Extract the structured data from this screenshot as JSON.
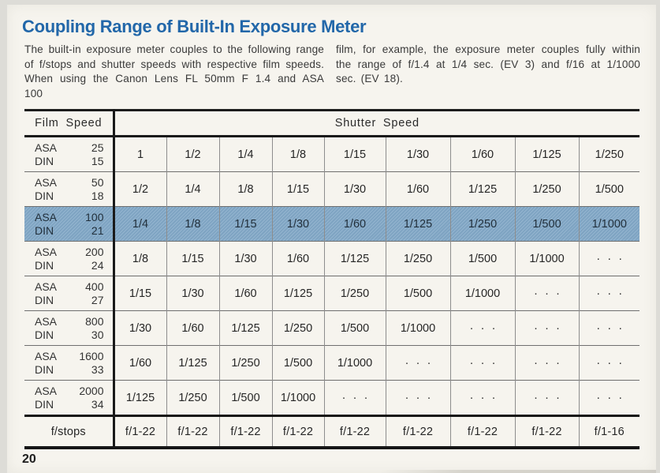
{
  "page": {
    "title": "Coupling Range of Built-In Exposure Meter",
    "intro_left": "The built-in exposure meter couples to the following range of f/stops and shutter speeds with respective film speeds. When using the Canon Lens FL 50mm F 1.4 and ASA 100",
    "intro_right": "film, for example, the exposure meter couples fully within the range of f/1.4 at 1/4 sec. (EV 3) and f/16 at 1/1000 sec. (EV 18).",
    "page_number": "20"
  },
  "colors": {
    "title_blue": "#2267a9",
    "highlight_row_blue": "#85abca",
    "table_line_dark": "#1a1a1a"
  },
  "table": {
    "film_speed_header": "Film Speed",
    "shutter_speed_header": "Shutter Speed",
    "dots": "···",
    "rows": [
      {
        "asa_label": "ASA",
        "din_label": "DIN",
        "asa": "25",
        "din": "15",
        "highlight": false,
        "speeds": [
          "1",
          "1/2",
          "1/4",
          "1/8",
          "1/15",
          "1/30",
          "1/60",
          "1/125",
          "1/250"
        ]
      },
      {
        "asa_label": "ASA",
        "din_label": "DIN",
        "asa": "50",
        "din": "18",
        "highlight": false,
        "speeds": [
          "1/2",
          "1/4",
          "1/8",
          "1/15",
          "1/30",
          "1/60",
          "1/125",
          "1/250",
          "1/500"
        ]
      },
      {
        "asa_label": "ASA",
        "din_label": "DIN",
        "asa": "100",
        "din": "21",
        "highlight": true,
        "speeds": [
          "1/4",
          "1/8",
          "1/15",
          "1/30",
          "1/60",
          "1/125",
          "1/250",
          "1/500",
          "1/1000"
        ]
      },
      {
        "asa_label": "ASA",
        "din_label": "DIN",
        "asa": "200",
        "din": "24",
        "highlight": false,
        "speeds": [
          "1/8",
          "1/15",
          "1/30",
          "1/60",
          "1/125",
          "1/250",
          "1/500",
          "1/1000",
          "···"
        ]
      },
      {
        "asa_label": "ASA",
        "din_label": "DIN",
        "asa": "400",
        "din": "27",
        "highlight": false,
        "speeds": [
          "1/15",
          "1/30",
          "1/60",
          "1/125",
          "1/250",
          "1/500",
          "1/1000",
          "···",
          "···"
        ]
      },
      {
        "asa_label": "ASA",
        "din_label": "DIN",
        "asa": "800",
        "din": "30",
        "highlight": false,
        "speeds": [
          "1/30",
          "1/60",
          "1/125",
          "1/250",
          "1/500",
          "1/1000",
          "···",
          "···",
          "···"
        ]
      },
      {
        "asa_label": "ASA",
        "din_label": "DIN",
        "asa": "1600",
        "din": "33",
        "highlight": false,
        "speeds": [
          "1/60",
          "1/125",
          "1/250",
          "1/500",
          "1/1000",
          "···",
          "···",
          "···",
          "···"
        ]
      },
      {
        "asa_label": "ASA",
        "din_label": "DIN",
        "asa": "2000",
        "din": "34",
        "highlight": false,
        "speeds": [
          "1/125",
          "1/250",
          "1/500",
          "1/1000",
          "···",
          "···",
          "···",
          "···",
          "···"
        ]
      }
    ],
    "fstops_label": "f/stops",
    "fstops": [
      "f/1-22",
      "f/1-22",
      "f/1-22",
      "f/1-22",
      "f/1-22",
      "f/1-22",
      "f/1-22",
      "f/1-22",
      "f/1-16"
    ]
  }
}
